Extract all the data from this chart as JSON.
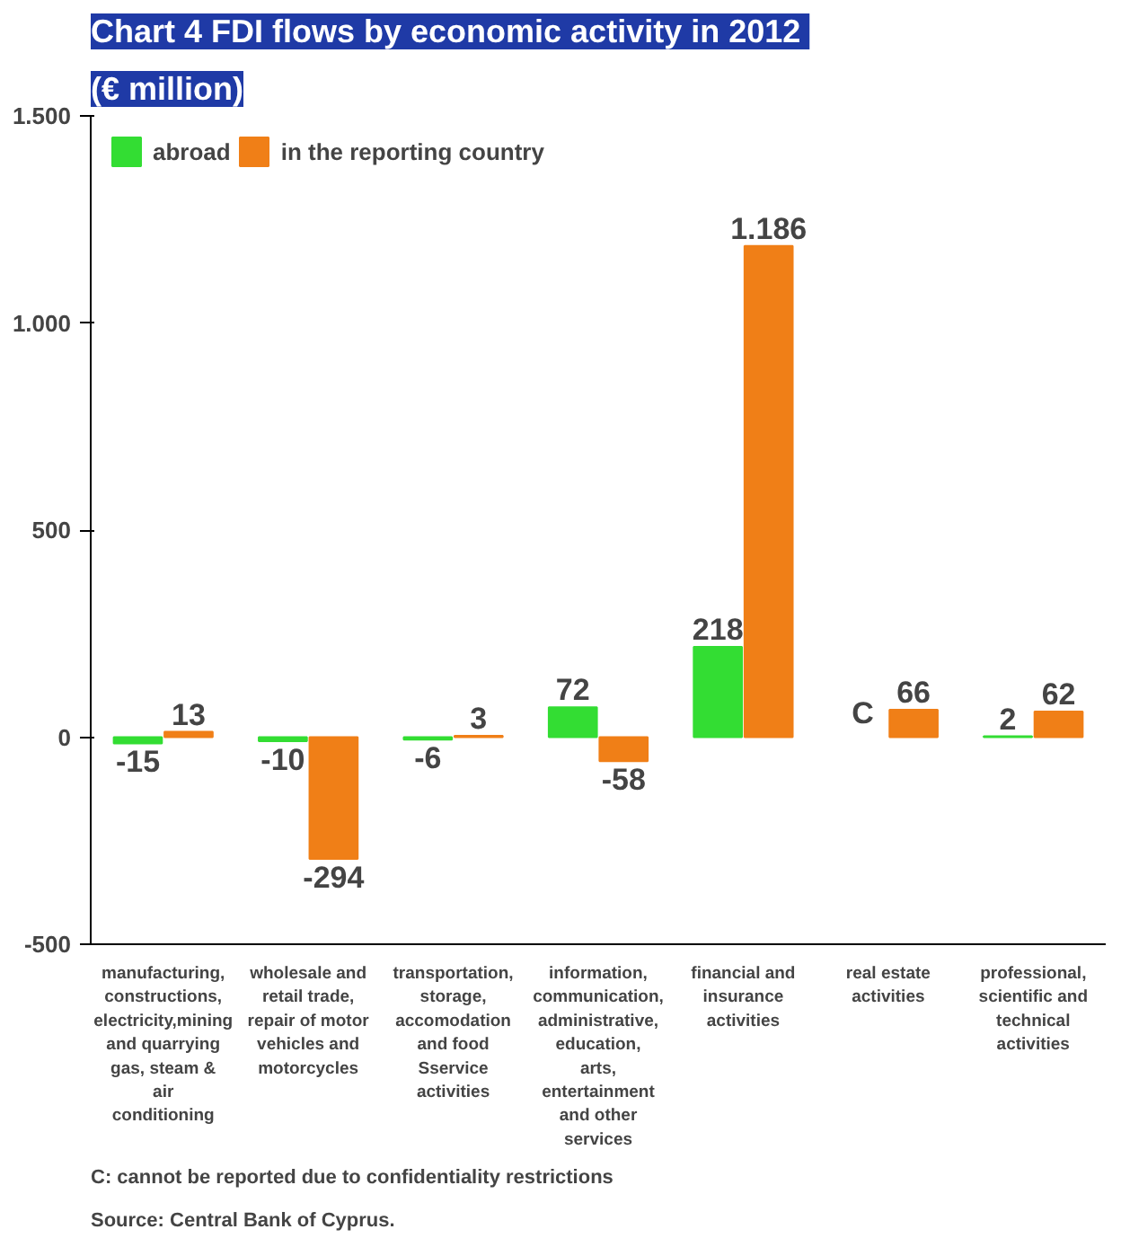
{
  "chart_data": {
    "type": "bar",
    "title": "Chart 4  FDI flows by economic activity in 2012",
    "subtitle": "(€ million)",
    "categories": [
      "manufacturing, constructions, electricity,mining and quarrying gas, steam & air conditioning",
      "wholesale and retail trade, repair of motor vehicles and motorcycles",
      "transportation, storage, accomodation and food Sservice activities",
      "information, communication, administrative, education, arts, entertainment and other services",
      "financial and insurance activities",
      "real estate activities",
      "professional, scientific and technical activities"
    ],
    "series": [
      {
        "name": "abroad",
        "color": "#33dd33",
        "values": [
          -15,
          -10,
          -6,
          72,
          218,
          null,
          2
        ],
        "value_labels": [
          "-15",
          "-10",
          "-6",
          "72",
          "218",
          "C",
          "2"
        ]
      },
      {
        "name": "in the reporting country",
        "color": "#f07f17",
        "values": [
          13,
          -294,
          3,
          -58,
          1186,
          66,
          62
        ],
        "value_labels": [
          "13",
          "-294",
          "3",
          "-58",
          "1.186",
          "66",
          "62"
        ]
      }
    ],
    "ylim": [
      -500,
      1500
    ],
    "yticks": [
      {
        "value": -500,
        "label": "-500"
      },
      0,
      500,
      {
        "value": 1000,
        "label": "1.000"
      },
      {
        "value": 1500,
        "label": "1.500"
      }
    ],
    "grid": false,
    "legend": "top left",
    "annotations": [
      "Source: Central Bank of Cyprus.",
      "C: cannot be reported due to confidentiality restrictions"
    ]
  }
}
